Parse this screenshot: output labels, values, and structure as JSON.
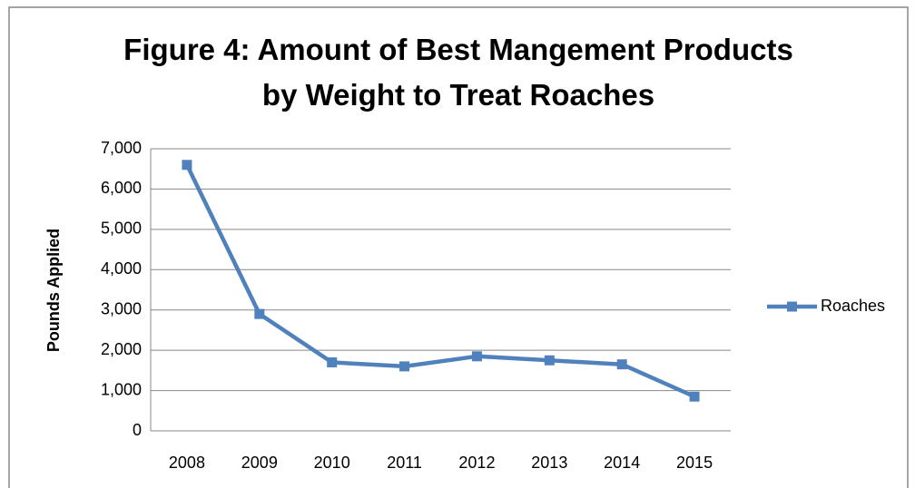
{
  "chart_data": {
    "type": "line",
    "title": "Figure 4: Amount of Best Mangement Products by Weight to Treat Roaches",
    "ylabel": "Pounds Applied",
    "categories": [
      "2008",
      "2009",
      "2010",
      "2011",
      "2012",
      "2013",
      "2014",
      "2015"
    ],
    "series": [
      {
        "name": "Roaches",
        "color": "#4f81bd",
        "values": [
          6600,
          2900,
          1700,
          1600,
          1850,
          1750,
          1650,
          850
        ]
      }
    ],
    "ylim": [
      0,
      7000
    ],
    "yticks": [
      0,
      {
        "value": 1000,
        "label": "1,000"
      },
      {
        "value": 2000,
        "label": "2,000"
      },
      {
        "value": 3000,
        "label": "3,000"
      },
      {
        "value": 4000,
        "label": "4,000"
      },
      {
        "value": 5000,
        "label": "5,000"
      },
      {
        "value": 6000,
        "label": "6,000"
      },
      {
        "value": 7000,
        "label": "7,000"
      }
    ],
    "grid": true,
    "legend": "right"
  }
}
